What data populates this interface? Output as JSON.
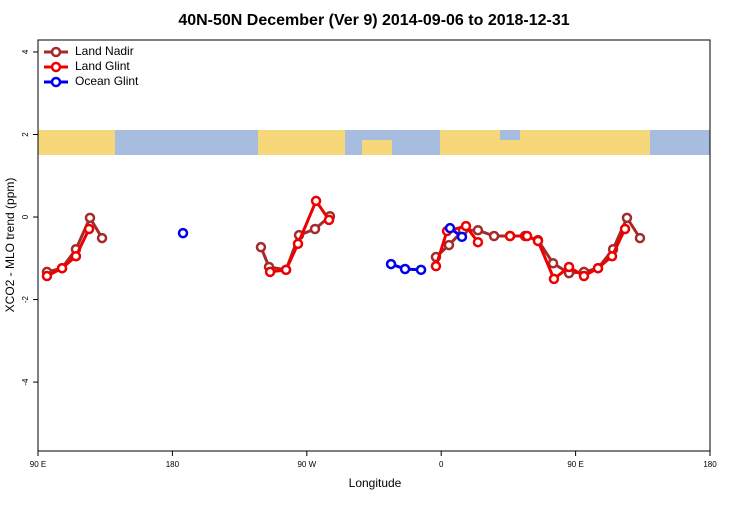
{
  "chart_data": {
    "type": "line",
    "title": "40N-50N December (Ver 9)   2014-09-06 to 2018-12-31",
    "x_label": "Longitude",
    "y_label": "XCO2 - MLO trend (ppm)",
    "xlim": [
      90,
      540
    ],
    "ylim": [
      -5.67,
      4.29
    ],
    "xticks": [
      {
        "value": 90,
        "label": "90 E"
      },
      180,
      {
        "value": 270,
        "label": "90 W"
      },
      {
        "value": 360,
        "label": "0"
      },
      {
        "value": 450,
        "label": "90 E"
      },
      {
        "value": 540,
        "label": "180"
      }
    ],
    "yticks": [
      -4,
      -2,
      0,
      2,
      4
    ],
    "legend": "top-left",
    "series": [
      {
        "name": "Land Nadir",
        "color": "#a52a2a",
        "x": [
          96.0,
          106.1,
          115.4,
          124.8,
          132.9,
          null,
          239.3,
          244.7,
          256.1,
          264.8,
          275.5,
          285.5,
          null,
          356.5,
          365.2,
          374.6,
          384.6,
          395.4,
          406.1,
          416.1,
          424.8,
          434.9,
          445.6,
          455.6,
          465.0,
          475.1,
          484.4,
          493.1
        ],
        "values": [
          -1.33,
          -1.24,
          -0.78,
          -0.02,
          -0.51,
          null,
          -0.73,
          -1.21,
          -1.28,
          -0.44,
          -0.29,
          0.02,
          null,
          -0.97,
          -0.68,
          -0.32,
          -0.32,
          -0.46,
          -0.46,
          -0.46,
          -0.56,
          -1.12,
          -1.36,
          -1.33,
          -1.24,
          -0.78,
          -0.02,
          -0.51
        ]
      },
      {
        "name": "Land Glint",
        "color": "#ee0000",
        "x": [
          96.0,
          106.1,
          115.4,
          124.2,
          null,
          245.4,
          256.1,
          264.1,
          276.2,
          284.9,
          null,
          356.5,
          363.9,
          376.6,
          384.6,
          null,
          406.1,
          417.5,
          424.8,
          435.5,
          445.6,
          455.6,
          465.0,
          474.4,
          483.1
        ],
        "values": [
          -1.43,
          -1.24,
          -0.95,
          -0.29,
          null,
          -1.33,
          -1.28,
          -0.65,
          0.39,
          -0.07,
          null,
          -1.19,
          -0.34,
          -0.22,
          -0.61,
          null,
          -0.46,
          -0.46,
          -0.58,
          -1.5,
          -1.21,
          -1.43,
          -1.24,
          -0.95,
          -0.29
        ]
      },
      {
        "name": "Ocean Glint",
        "color": "#0000ee",
        "x": [
          187.1,
          null,
          326.4,
          335.8,
          346.5,
          null,
          365.9,
          373.9
        ],
        "values": [
          -0.39,
          null,
          -1.14,
          -1.26,
          -1.28,
          null,
          -0.27,
          -0.48
        ]
      }
    ]
  }
}
